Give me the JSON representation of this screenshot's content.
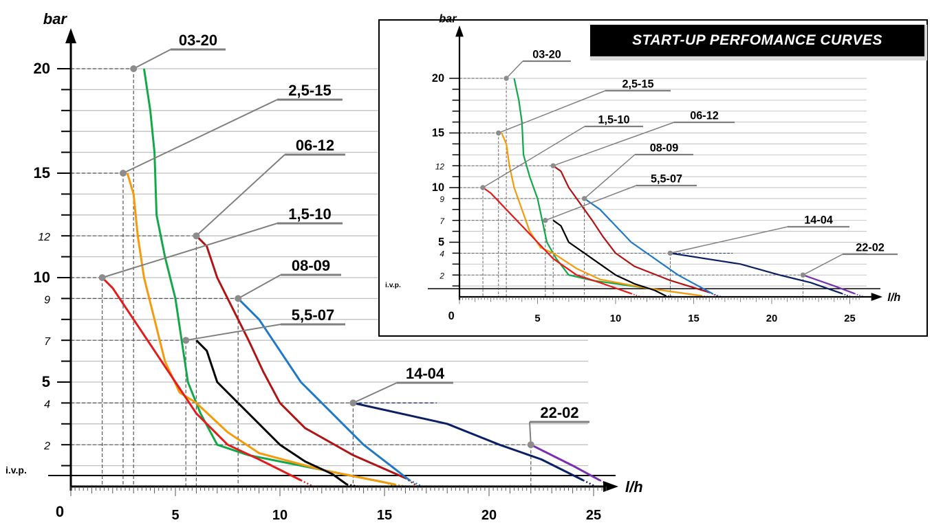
{
  "inset_title": "START-UP PERFOMANCE CURVES",
  "colors": {
    "03-20": "#12a84a",
    "2,5-15": "#f59a0c",
    "06-12": "#b01414",
    "1,5-10": "#e31b1b",
    "08-09": "#1f78c8",
    "5,5-07": "#000000",
    "14-04": "#0b1f63",
    "22-02": "#7a2fb0",
    "leader": "#7f7f7f",
    "grid": "#c0c0c0"
  },
  "chart_data": [
    {
      "id": "main",
      "type": "line",
      "xlabel": "l/h",
      "ylabel": "bar",
      "xlim": [
        0,
        26
      ],
      "ylim": [
        0,
        21
      ],
      "x_ticks": [
        "5",
        "10",
        "15",
        "20",
        "25"
      ],
      "y_ticks": [
        {
          "value": 20,
          "label": "20",
          "style": "bold"
        },
        {
          "value": 15,
          "label": "15",
          "style": "bold"
        },
        {
          "value": 12,
          "label": "12",
          "style": "italic"
        },
        {
          "value": 10,
          "label": "10",
          "style": "bold"
        },
        {
          "value": 9,
          "label": "9",
          "style": "italic"
        },
        {
          "value": 7,
          "label": "7",
          "style": "italic"
        },
        {
          "value": 5,
          "label": "5",
          "style": "bold"
        },
        {
          "value": 4,
          "label": "4",
          "style": "italic"
        },
        {
          "value": 2,
          "label": "2",
          "style": "italic"
        },
        {
          "value": 0,
          "label": "0",
          "style": "bold"
        }
      ],
      "ivp_label": "i.v.p.",
      "series": [
        {
          "name": "03-20",
          "x": [
            3.5,
            3.8,
            4.0,
            4.1,
            4.5,
            5.0,
            5.3,
            5.6,
            6.2,
            7.0,
            8.5,
            12.0,
            15.0
          ],
          "y": [
            20,
            18,
            16,
            13,
            11,
            9,
            7,
            5,
            3.5,
            2,
            1.5,
            0.8,
            0.2
          ]
        },
        {
          "name": "2,5-15",
          "x": [
            2.7,
            3.0,
            3.2,
            3.5,
            4.0,
            4.5,
            5.2,
            6.0,
            7.5,
            9.0,
            12.0,
            15.5
          ],
          "y": [
            15,
            14,
            12,
            10,
            8,
            6,
            4.5,
            4,
            2.6,
            1.6,
            0.8,
            0.1
          ]
        },
        {
          "name": "06-12",
          "x": [
            6.0,
            6.5,
            7.0,
            7.5,
            8.0,
            8.5,
            9.2,
            10.0,
            11.2,
            13.5,
            16.0
          ],
          "y": [
            12,
            11.5,
            10,
            9,
            8,
            7,
            5.5,
            4,
            2.8,
            1.5,
            0.4
          ]
        },
        {
          "name": "1,5-10",
          "x": [
            1.5,
            2.0,
            3.0,
            4.0,
            5.0,
            6.0,
            7.5,
            9.0,
            11.0
          ],
          "y": [
            10,
            9.5,
            8,
            6.5,
            5,
            3.5,
            2,
            1.3,
            0.3
          ]
        },
        {
          "name": "08-09",
          "x": [
            8.0,
            9.0,
            10.0,
            11.0,
            11.5,
            12.5,
            14.0,
            16.2
          ],
          "y": [
            9,
            8,
            6.5,
            5,
            4.5,
            3.5,
            2,
            0.3
          ]
        },
        {
          "name": "5,5-07",
          "x": [
            6.0,
            6.5,
            7.0,
            8.0,
            9.0,
            10.0,
            11.2,
            12.5,
            13.2
          ],
          "y": [
            7,
            6.5,
            5,
            4,
            3,
            2,
            1.2,
            0.6,
            0.1
          ]
        },
        {
          "name": "14-04",
          "x": [
            13.5,
            18.0,
            20.5,
            22.5,
            24.5
          ],
          "y": [
            4,
            3,
            2,
            1.3,
            0.3
          ]
        },
        {
          "name": "22-02",
          "x": [
            22.0,
            24.0,
            25.3
          ],
          "y": [
            2,
            1,
            0.3
          ]
        }
      ],
      "labels": [
        {
          "text": "03-20",
          "marker": [
            3,
            20
          ]
        },
        {
          "text": "2,5-15",
          "marker": [
            2.5,
            15
          ]
        },
        {
          "text": "06-12",
          "marker": [
            6,
            12
          ]
        },
        {
          "text": "1,5-10",
          "marker": [
            1.5,
            10
          ]
        },
        {
          "text": "08-09",
          "marker": [
            8,
            9
          ]
        },
        {
          "text": "5,5-07",
          "marker": [
            5.5,
            7
          ]
        },
        {
          "text": "14-04",
          "marker": [
            13.5,
            4
          ]
        },
        {
          "text": "22-02",
          "marker": [
            22,
            2
          ]
        }
      ]
    },
    {
      "id": "inset",
      "type": "line",
      "title": "START-UP PERFOMANCE CURVES",
      "xlabel": "l/h",
      "ylabel": "bar",
      "xlim": [
        0,
        26
      ],
      "ylim": [
        0,
        21
      ],
      "x_ticks": [
        "5",
        "10",
        "15",
        "20",
        "25"
      ],
      "y_ticks": [
        "20",
        "15",
        "12",
        "10",
        "9",
        "7",
        "5",
        "4",
        "2",
        "0"
      ],
      "ivp_label": "i.v.p."
    }
  ]
}
